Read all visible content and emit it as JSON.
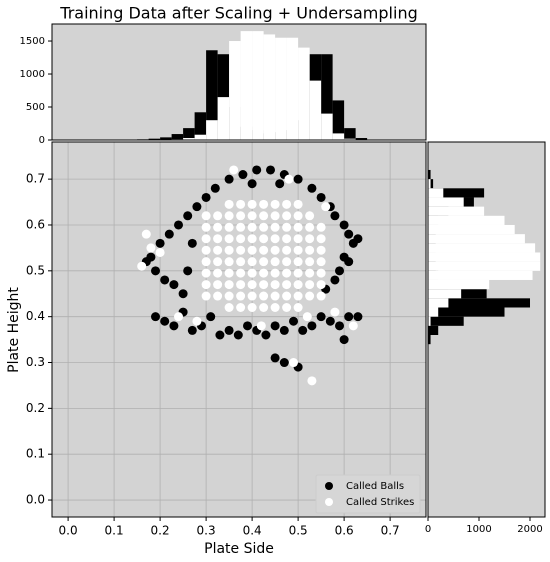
{
  "chart_data": [
    {
      "type": "scatter",
      "title": "Training Data after Scaling + Undersampling",
      "xlabel": "Plate Side",
      "ylabel": "Plate Height",
      "xlim": [
        -0.035,
        0.778
      ],
      "ylim": [
        -0.037,
        0.781
      ],
      "xticks": [
        {
          "value": 0,
          "label": "0.0"
        },
        0.1,
        0.2,
        0.3,
        0.4,
        0.5,
        0.6,
        0.7
      ],
      "yticks": [
        {
          "value": 0,
          "label": "0.0"
        },
        0.1,
        0.2,
        0.3,
        0.4,
        0.5,
        0.6,
        0.7
      ],
      "grid": true,
      "legend": "lower right",
      "series": [
        {
          "name": "Called Balls",
          "color": "#000000",
          "x": [
            0.35,
            0.38,
            0.41,
            0.44,
            0.47,
            0.5,
            0.53,
            0.32,
            0.3,
            0.55,
            0.57,
            0.28,
            0.4,
            0.46,
            0.26,
            0.24,
            0.22,
            0.2,
            0.18,
            0.17,
            0.19,
            0.21,
            0.23,
            0.25,
            0.27,
            0.26,
            0.58,
            0.6,
            0.61,
            0.62,
            0.63,
            0.6,
            0.59,
            0.58,
            0.56,
            0.61,
            0.19,
            0.21,
            0.23,
            0.25,
            0.27,
            0.29,
            0.31,
            0.33,
            0.35,
            0.37,
            0.39,
            0.41,
            0.43,
            0.45,
            0.47,
            0.49,
            0.51,
            0.53,
            0.55,
            0.57,
            0.59,
            0.61,
            0.63,
            0.6,
            0.45,
            0.47,
            0.5
          ],
          "y": [
            0.7,
            0.71,
            0.72,
            0.72,
            0.71,
            0.7,
            0.68,
            0.68,
            0.66,
            0.66,
            0.64,
            0.64,
            0.69,
            0.69,
            0.62,
            0.6,
            0.58,
            0.56,
            0.53,
            0.52,
            0.5,
            0.48,
            0.47,
            0.45,
            0.56,
            0.5,
            0.62,
            0.6,
            0.58,
            0.56,
            0.57,
            0.53,
            0.5,
            0.48,
            0.46,
            0.52,
            0.4,
            0.39,
            0.38,
            0.41,
            0.37,
            0.38,
            0.4,
            0.36,
            0.37,
            0.36,
            0.38,
            0.37,
            0.36,
            0.38,
            0.37,
            0.39,
            0.37,
            0.38,
            0.4,
            0.39,
            0.38,
            0.4,
            0.4,
            0.35,
            0.31,
            0.3,
            0.29
          ]
        },
        {
          "name": "Called Strikes",
          "color": "#ffffff",
          "x": [
            0.35,
            0.375,
            0.4,
            0.425,
            0.45,
            0.475,
            0.5,
            0.3,
            0.325,
            0.35,
            0.375,
            0.4,
            0.425,
            0.45,
            0.475,
            0.5,
            0.525,
            0.55,
            0.3,
            0.325,
            0.35,
            0.375,
            0.4,
            0.425,
            0.45,
            0.475,
            0.5,
            0.525,
            0.55,
            0.3,
            0.325,
            0.35,
            0.375,
            0.4,
            0.425,
            0.45,
            0.475,
            0.5,
            0.525,
            0.55,
            0.3,
            0.325,
            0.35,
            0.375,
            0.4,
            0.425,
            0.45,
            0.475,
            0.5,
            0.525,
            0.55,
            0.3,
            0.325,
            0.35,
            0.375,
            0.4,
            0.425,
            0.45,
            0.475,
            0.5,
            0.525,
            0.55,
            0.3,
            0.325,
            0.35,
            0.375,
            0.4,
            0.425,
            0.45,
            0.475,
            0.5,
            0.525,
            0.55,
            0.3,
            0.325,
            0.35,
            0.375,
            0.4,
            0.425,
            0.45,
            0.475,
            0.5,
            0.525,
            0.55,
            0.325,
            0.35,
            0.375,
            0.4,
            0.425,
            0.45,
            0.475,
            0.5,
            0.525,
            0.35,
            0.375,
            0.4,
            0.425,
            0.45,
            0.475,
            0.5,
            0.17,
            0.18,
            0.16,
            0.2,
            0.24,
            0.28,
            0.42,
            0.52,
            0.58,
            0.62,
            0.36,
            0.48,
            0.3,
            0.49,
            0.53,
            0.56
          ],
          "y": [
            0.42,
            0.42,
            0.42,
            0.42,
            0.42,
            0.42,
            0.42,
            0.445,
            0.445,
            0.445,
            0.445,
            0.445,
            0.445,
            0.445,
            0.445,
            0.445,
            0.445,
            0.445,
            0.47,
            0.47,
            0.47,
            0.47,
            0.47,
            0.47,
            0.47,
            0.47,
            0.47,
            0.47,
            0.47,
            0.495,
            0.495,
            0.495,
            0.495,
            0.495,
            0.495,
            0.495,
            0.495,
            0.495,
            0.495,
            0.495,
            0.52,
            0.52,
            0.52,
            0.52,
            0.52,
            0.52,
            0.52,
            0.52,
            0.52,
            0.52,
            0.52,
            0.545,
            0.545,
            0.545,
            0.545,
            0.545,
            0.545,
            0.545,
            0.545,
            0.545,
            0.545,
            0.545,
            0.57,
            0.57,
            0.57,
            0.57,
            0.57,
            0.57,
            0.57,
            0.57,
            0.57,
            0.57,
            0.57,
            0.595,
            0.595,
            0.595,
            0.595,
            0.595,
            0.595,
            0.595,
            0.595,
            0.595,
            0.595,
            0.595,
            0.62,
            0.62,
            0.62,
            0.62,
            0.62,
            0.62,
            0.62,
            0.62,
            0.62,
            0.645,
            0.645,
            0.645,
            0.645,
            0.645,
            0.645,
            0.645,
            0.58,
            0.55,
            0.51,
            0.54,
            0.4,
            0.39,
            0.38,
            0.4,
            0.41,
            0.38,
            0.72,
            0.7,
            0.62,
            0.3,
            0.26,
            0.64
          ]
        }
      ]
    },
    {
      "type": "histogram",
      "orientation": "vertical",
      "bins": [
        0.15,
        0.175,
        0.2,
        0.225,
        0.25,
        0.275,
        0.3,
        0.325,
        0.35,
        0.375,
        0.4,
        0.425,
        0.45,
        0.475,
        0.5,
        0.525,
        0.55,
        0.575,
        0.6,
        0.625,
        0.65
      ],
      "xlim": [
        -0.035,
        0.778
      ],
      "ylim": [
        0,
        1758
      ],
      "yticks": [
        0,
        500,
        1000,
        1500
      ],
      "series": [
        {
          "color": "#000000",
          "values": [
            10,
            20,
            40,
            90,
            180,
            420,
            1360,
            1300,
            500,
            200,
            150,
            100,
            120,
            150,
            300,
            1300,
            1300,
            600,
            180,
            30
          ]
        },
        {
          "color": "#ffffff",
          "values": [
            0,
            0,
            5,
            10,
            30,
            80,
            300,
            650,
            1500,
            1650,
            1650,
            1600,
            1550,
            1550,
            1400,
            900,
            400,
            100,
            20,
            0
          ]
        }
      ]
    },
    {
      "type": "histogram",
      "orientation": "horizontal",
      "bins": [
        0.34,
        0.36,
        0.38,
        0.4,
        0.42,
        0.44,
        0.46,
        0.48,
        0.5,
        0.52,
        0.54,
        0.56,
        0.58,
        0.6,
        0.62,
        0.64,
        0.66,
        0.68,
        0.7,
        0.72
      ],
      "ylim": [
        -0.037,
        0.781
      ],
      "xlim": [
        0,
        2294
      ],
      "xticks": [
        0,
        1000,
        2000
      ],
      "series": [
        {
          "color": "#000000",
          "values": [
            50,
            200,
            700,
            1500,
            2000,
            1150,
            400,
            200,
            150,
            150,
            150,
            150,
            150,
            200,
            400,
            900,
            1100,
            100,
            50
          ]
        },
        {
          "color": "#ffffff",
          "values": [
            0,
            10,
            50,
            200,
            400,
            650,
            1200,
            2050,
            2200,
            2200,
            2100,
            1900,
            1700,
            1500,
            1100,
            700,
            300,
            50,
            10
          ]
        }
      ]
    }
  ]
}
